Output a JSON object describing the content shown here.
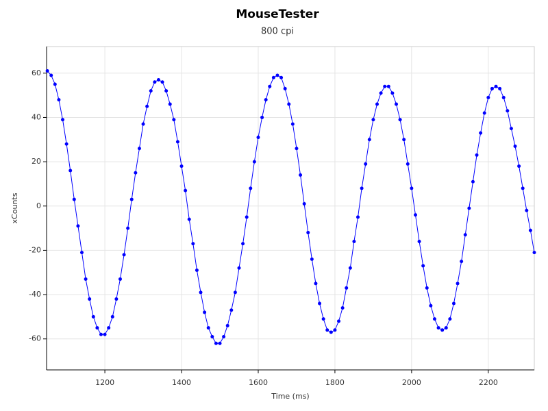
{
  "chart_data": {
    "type": "line",
    "title": "MouseTester",
    "subtitle": "800 cpi",
    "x_label": "Time (ms)",
    "y_label": "xCounts",
    "x": [
      1050,
      1060,
      1070,
      1080,
      1090,
      1100,
      1110,
      1120,
      1130,
      1140,
      1150,
      1160,
      1170,
      1180,
      1190,
      1200,
      1210,
      1220,
      1230,
      1240,
      1250,
      1260,
      1270,
      1280,
      1290,
      1300,
      1310,
      1320,
      1330,
      1340,
      1350,
      1360,
      1370,
      1380,
      1390,
      1400,
      1410,
      1420,
      1430,
      1440,
      1450,
      1460,
      1470,
      1480,
      1490,
      1500,
      1510,
      1520,
      1530,
      1540,
      1550,
      1560,
      1570,
      1580,
      1590,
      1600,
      1610,
      1620,
      1630,
      1640,
      1650,
      1660,
      1670,
      1680,
      1690,
      1700,
      1710,
      1720,
      1730,
      1740,
      1750,
      1760,
      1770,
      1780,
      1790,
      1800,
      1810,
      1820,
      1830,
      1840,
      1850,
      1860,
      1870,
      1880,
      1890,
      1900,
      1910,
      1920,
      1930,
      1940,
      1950,
      1960,
      1970,
      1980,
      1990,
      2000,
      2010,
      2020,
      2030,
      2040,
      2050,
      2060,
      2070,
      2080,
      2090,
      2100,
      2110,
      2120,
      2130,
      2140,
      2150,
      2160,
      2170,
      2180,
      2190,
      2200,
      2210,
      2220,
      2230,
      2240,
      2250,
      2260,
      2270,
      2280,
      2290,
      2300,
      2310,
      2320
    ],
    "values": [
      61,
      59,
      55,
      48,
      39,
      28,
      16,
      3,
      -9,
      -21,
      -33,
      -42,
      -50,
      -55,
      -58,
      -58,
      -55,
      -50,
      -42,
      -33,
      -22,
      -10,
      3,
      15,
      26,
      37,
      45,
      52,
      56,
      57,
      56,
      52,
      46,
      39,
      29,
      18,
      7,
      -6,
      -17,
      -29,
      -39,
      -48,
      -55,
      -59,
      -62,
      -62,
      -59,
      -54,
      -47,
      -39,
      -28,
      -17,
      -5,
      8,
      20,
      31,
      40,
      48,
      54,
      58,
      59,
      58,
      53,
      46,
      37,
      26,
      14,
      1,
      -12,
      -24,
      -35,
      -44,
      -51,
      -56,
      -57,
      -56,
      -52,
      -46,
      -37,
      -28,
      -16,
      -5,
      8,
      19,
      30,
      39,
      46,
      51,
      54,
      54,
      51,
      46,
      39,
      30,
      19,
      8,
      -4,
      -16,
      -27,
      -37,
      -45,
      -51,
      -55,
      -56,
      -55,
      -51,
      -44,
      -35,
      -25,
      -13,
      -1,
      11,
      23,
      33,
      42,
      49,
      53,
      54,
      53,
      49,
      43,
      35,
      27,
      18,
      8,
      -2,
      -11,
      -21
    ],
    "color": "#0000ff",
    "xlim": [
      1048,
      2320
    ],
    "xticks": [
      1200,
      1400,
      1600,
      1800,
      2000,
      2200
    ],
    "ylim": [
      -74,
      72
    ],
    "yticks": [
      -60,
      -40,
      -20,
      0,
      20,
      40,
      60
    ],
    "grid": true
  }
}
